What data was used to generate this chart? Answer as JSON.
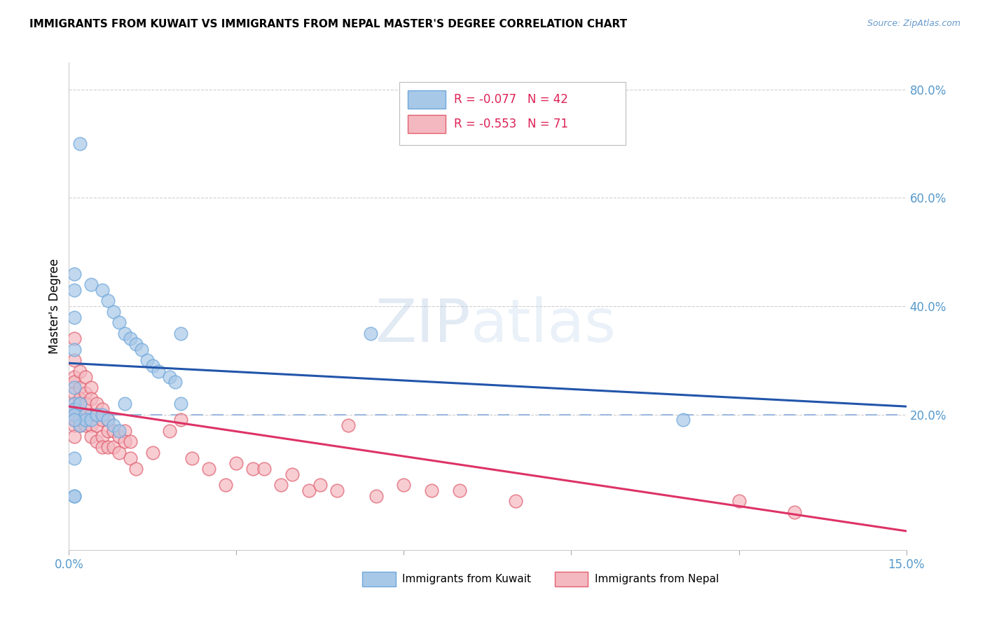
{
  "title": "IMMIGRANTS FROM KUWAIT VS IMMIGRANTS FROM NEPAL MASTER'S DEGREE CORRELATION CHART",
  "source": "Source: ZipAtlas.com",
  "ylabel_left": "Master's Degree",
  "xlim": [
    0.0,
    0.15
  ],
  "ylim": [
    -0.05,
    0.85
  ],
  "right_yticks": [
    0.2,
    0.4,
    0.6,
    0.8
  ],
  "right_ytick_labels": [
    "20.0%",
    "40.0%",
    "60.0%",
    "80.0%"
  ],
  "xtick_positions": [
    0.0,
    0.03,
    0.06,
    0.09,
    0.12,
    0.15
  ],
  "xtick_labels": [
    "0.0%",
    "",
    "",
    "",
    "",
    "15.0%"
  ],
  "color_kuwait": "#a8c8e8",
  "color_kuwait_edge": "#6fa8dc",
  "color_nepal": "#f4b8c0",
  "color_nepal_edge": "#e06070",
  "color_kuwait_line": "#2255aa",
  "color_nepal_line": "#dd3366",
  "color_dashed": "#88aadd",
  "color_grid": "#d0d0d0",
  "background": "#ffffff",
  "legend_r_kuwait": "R = -0.077",
  "legend_n_kuwait": "N = 42",
  "legend_r_nepal": "R = -0.553",
  "legend_n_nepal": "N = 71",
  "label_kuwait": "Immigrants from Kuwait",
  "label_nepal": "Immigrants from Nepal",
  "kuwait_x": [
    0.002,
    0.004,
    0.006,
    0.007,
    0.008,
    0.009,
    0.01,
    0.011,
    0.012,
    0.013,
    0.014,
    0.015,
    0.016,
    0.018,
    0.019,
    0.02,
    0.001,
    0.001,
    0.001,
    0.001,
    0.001,
    0.001,
    0.001,
    0.001,
    0.002,
    0.002,
    0.003,
    0.003,
    0.004,
    0.005,
    0.006,
    0.007,
    0.008,
    0.009,
    0.01,
    0.02,
    0.054,
    0.001,
    0.001,
    0.11,
    0.001,
    0.001
  ],
  "kuwait_y": [
    0.7,
    0.44,
    0.43,
    0.41,
    0.39,
    0.37,
    0.35,
    0.34,
    0.33,
    0.32,
    0.3,
    0.29,
    0.28,
    0.27,
    0.26,
    0.35,
    0.46,
    0.43,
    0.38,
    0.32,
    0.25,
    0.22,
    0.21,
    0.2,
    0.22,
    0.18,
    0.2,
    0.19,
    0.19,
    0.2,
    0.2,
    0.19,
    0.18,
    0.17,
    0.22,
    0.22,
    0.35,
    0.12,
    0.05,
    0.19,
    0.19,
    0.05
  ],
  "nepal_x": [
    0.001,
    0.001,
    0.001,
    0.001,
    0.001,
    0.001,
    0.001,
    0.001,
    0.001,
    0.001,
    0.001,
    0.001,
    0.002,
    0.002,
    0.002,
    0.002,
    0.002,
    0.002,
    0.002,
    0.003,
    0.003,
    0.003,
    0.003,
    0.003,
    0.004,
    0.004,
    0.004,
    0.004,
    0.004,
    0.005,
    0.005,
    0.005,
    0.005,
    0.006,
    0.006,
    0.006,
    0.006,
    0.007,
    0.007,
    0.007,
    0.008,
    0.008,
    0.009,
    0.009,
    0.01,
    0.01,
    0.011,
    0.011,
    0.012,
    0.015,
    0.018,
    0.02,
    0.022,
    0.025,
    0.028,
    0.03,
    0.033,
    0.035,
    0.038,
    0.04,
    0.043,
    0.045,
    0.048,
    0.05,
    0.055,
    0.06,
    0.065,
    0.07,
    0.08,
    0.12,
    0.13
  ],
  "nepal_y": [
    0.34,
    0.3,
    0.27,
    0.26,
    0.24,
    0.22,
    0.21,
    0.2,
    0.2,
    0.19,
    0.18,
    0.16,
    0.28,
    0.25,
    0.23,
    0.22,
    0.2,
    0.19,
    0.18,
    0.27,
    0.24,
    0.22,
    0.2,
    0.18,
    0.25,
    0.23,
    0.2,
    0.18,
    0.16,
    0.22,
    0.2,
    0.18,
    0.15,
    0.21,
    0.19,
    0.16,
    0.14,
    0.19,
    0.17,
    0.14,
    0.17,
    0.14,
    0.16,
    0.13,
    0.17,
    0.15,
    0.15,
    0.12,
    0.1,
    0.13,
    0.17,
    0.19,
    0.12,
    0.1,
    0.07,
    0.11,
    0.1,
    0.1,
    0.07,
    0.09,
    0.06,
    0.07,
    0.06,
    0.18,
    0.05,
    0.07,
    0.06,
    0.06,
    0.04,
    0.04,
    0.02
  ],
  "kuwait_line_x": [
    0.0,
    0.15
  ],
  "kuwait_line_y": [
    0.295,
    0.215
  ],
  "nepal_line_x": [
    0.0,
    0.15
  ],
  "nepal_line_y": [
    0.215,
    -0.015
  ]
}
